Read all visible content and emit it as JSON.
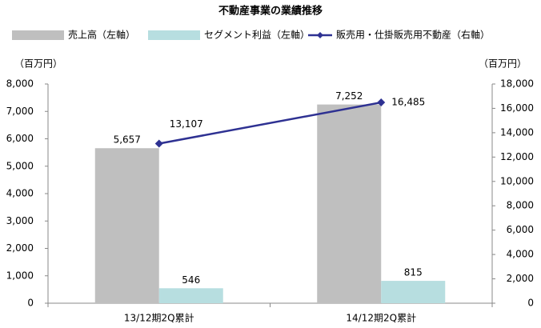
{
  "chart_data": {
    "type": "bar",
    "title": "不動産事業の業績推移",
    "y_label": "（百万円）",
    "y2_label": "（百万円）",
    "categories": [
      "13/12期2Q累計",
      "14/12期2Q累計"
    ],
    "series": [
      {
        "name": "売上高（左軸）",
        "color": "#bfbfbf",
        "values": [
          5657,
          7252
        ],
        "value_labels": [
          "5,657",
          "7,252"
        ]
      },
      {
        "name": "セグメント利益（左軸）",
        "color": "#b7dee0",
        "values": [
          546,
          815
        ]
      },
      {
        "name": "販売用・仕掛販売用不動産（右軸）",
        "color": "#2e3192",
        "type": "line",
        "axis": "y2",
        "values": [
          13107,
          16485
        ],
        "value_labels": [
          "13,107",
          "16,485"
        ]
      }
    ],
    "ylim": [
      0,
      8000
    ],
    "yticks": [
      0,
      {
        "value": 1000,
        "label": "1,000"
      },
      {
        "value": 2000,
        "label": "2,000"
      },
      {
        "value": 3000,
        "label": "3,000"
      },
      {
        "value": 4000,
        "label": "4,000"
      },
      {
        "value": 5000,
        "label": "5,000"
      },
      {
        "value": 6000,
        "label": "6,000"
      },
      {
        "value": 7000,
        "label": "7,000"
      },
      {
        "value": 8000,
        "label": "8,000"
      }
    ],
    "y2lim": [
      0,
      18000
    ],
    "y2ticks": [
      0,
      {
        "value": 2000,
        "label": "2,000"
      },
      {
        "value": 4000,
        "label": "4,000"
      },
      {
        "value": 6000,
        "label": "6,000"
      },
      {
        "value": 8000,
        "label": "8,000"
      },
      {
        "value": 10000,
        "label": "10,000"
      },
      {
        "value": 12000,
        "label": "12,000"
      },
      {
        "value": 14000,
        "label": "14,000"
      },
      {
        "value": 16000,
        "label": "16,000"
      },
      {
        "value": 18000,
        "label": "18,000"
      }
    ],
    "grid": false
  }
}
